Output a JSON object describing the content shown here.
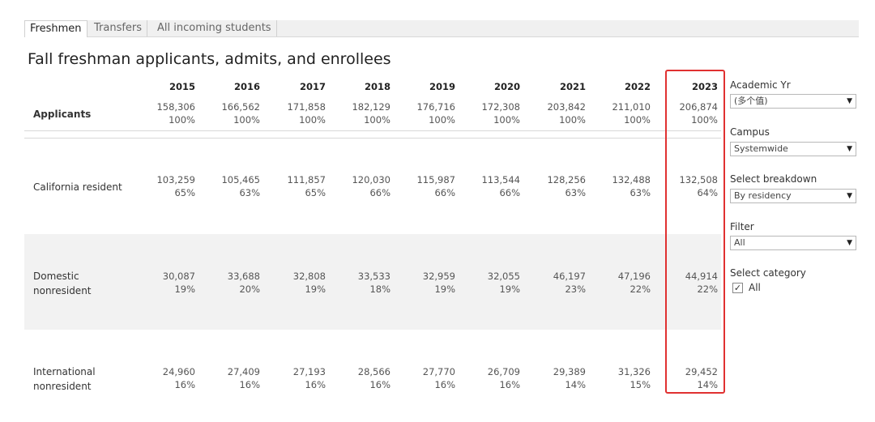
{
  "tabs": [
    {
      "label": "Freshmen",
      "active": true
    },
    {
      "label": "Transfers",
      "active": false
    },
    {
      "label": "All incoming students",
      "active": false
    }
  ],
  "title": "Fall freshman applicants, admits, and enrollees",
  "years": [
    "2015",
    "2016",
    "2017",
    "2018",
    "2019",
    "2020",
    "2021",
    "2022",
    "2023"
  ],
  "rows": [
    {
      "label_lines": [
        "Applicants"
      ],
      "counts": [
        "158,306",
        "166,562",
        "171,858",
        "182,129",
        "176,716",
        "172,308",
        "203,842",
        "211,010",
        "206,874"
      ],
      "percents": [
        "100%",
        "100%",
        "100%",
        "100%",
        "100%",
        "100%",
        "100%",
        "100%",
        "100%"
      ]
    },
    {
      "label_lines": [
        "California resident"
      ],
      "counts": [
        "103,259",
        "105,465",
        "111,857",
        "120,030",
        "115,987",
        "113,544",
        "128,256",
        "132,488",
        "132,508"
      ],
      "percents": [
        "65%",
        "63%",
        "65%",
        "66%",
        "66%",
        "66%",
        "63%",
        "63%",
        "64%"
      ]
    },
    {
      "label_lines": [
        "Domestic",
        "nonresident"
      ],
      "counts": [
        "30,087",
        "33,688",
        "32,808",
        "33,533",
        "32,959",
        "32,055",
        "46,197",
        "47,196",
        "44,914"
      ],
      "percents": [
        "19%",
        "20%",
        "19%",
        "18%",
        "19%",
        "19%",
        "23%",
        "22%",
        "22%"
      ]
    },
    {
      "label_lines": [
        "International",
        "nonresident"
      ],
      "counts": [
        "24,960",
        "27,409",
        "27,193",
        "28,566",
        "27,770",
        "26,709",
        "29,389",
        "31,326",
        "29,452"
      ],
      "percents": [
        "16%",
        "16%",
        "16%",
        "16%",
        "16%",
        "16%",
        "14%",
        "15%",
        "14%"
      ]
    }
  ],
  "filters": {
    "academic_yr": {
      "label": "Academic Yr",
      "value": "(多个值)"
    },
    "campus": {
      "label": "Campus",
      "value": "Systemwide"
    },
    "breakdown": {
      "label": "Select breakdown",
      "value": "By residency"
    },
    "filter": {
      "label": "Filter",
      "value": "All"
    },
    "category": {
      "label": "Select category",
      "option_label": "All",
      "checked": true
    }
  },
  "colors": {
    "highlight": "#e03131",
    "band": "#f2f2f2"
  },
  "icons": {
    "dropdown": "chevron-down-icon",
    "check": "check-icon"
  }
}
